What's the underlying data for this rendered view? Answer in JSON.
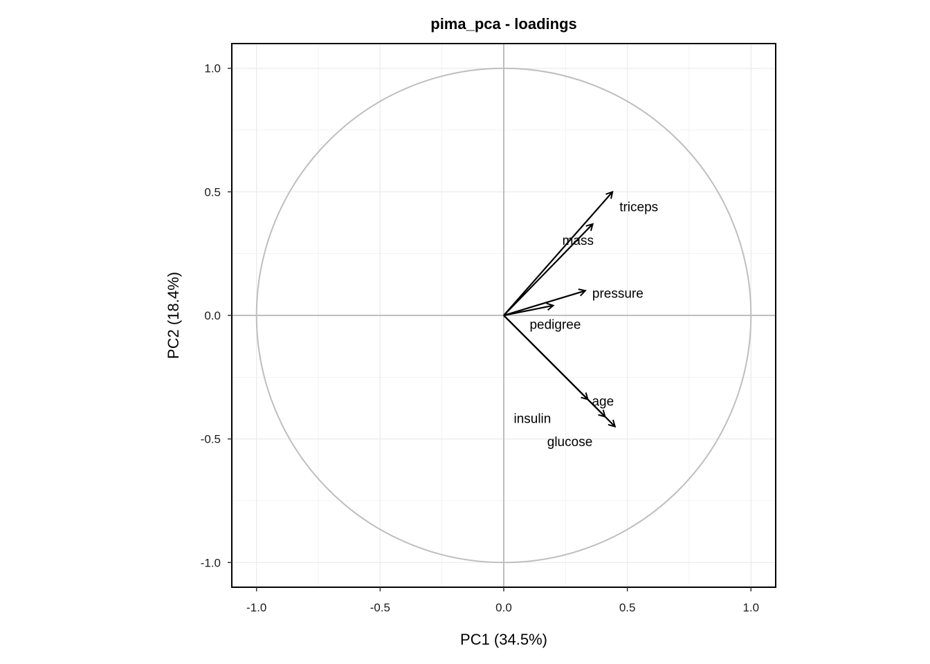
{
  "chart_data": {
    "type": "scatter",
    "subtype": "pca-loadings-arrows",
    "title": "pima_pca - loadings",
    "xlabel": "PC1 (34.5%)",
    "ylabel": "PC2 (18.4%)",
    "xlim": [
      -1.1,
      1.1
    ],
    "ylim": [
      -1.1,
      1.1
    ],
    "x_ticks": [
      -1.0,
      -0.5,
      0.0,
      0.5,
      1.0
    ],
    "x_tick_labels": [
      "-1.0",
      "-0.5",
      "0.0",
      "0.5",
      "1.0"
    ],
    "y_ticks": [
      -1.0,
      -0.5,
      0.0,
      0.5,
      1.0
    ],
    "y_tick_labels": [
      "-1.0",
      "-0.5",
      "0.0",
      "0.5",
      "1.0"
    ],
    "grid": true,
    "unit_circle": true,
    "colors": {
      "arrow": "#000000",
      "circle": "#bebebe",
      "grid": "#ebebeb",
      "zero_lines": "#bebebe"
    },
    "loadings": [
      {
        "name": "triceps",
        "x": 0.44,
        "y": 0.5
      },
      {
        "name": "mass",
        "x": 0.36,
        "y": 0.37
      },
      {
        "name": "pressure",
        "x": 0.33,
        "y": 0.1
      },
      {
        "name": "pedigree",
        "x": 0.2,
        "y": 0.04
      },
      {
        "name": "age",
        "x": 0.34,
        "y": -0.34
      },
      {
        "name": "insulin",
        "x": 0.41,
        "y": -0.41
      },
      {
        "name": "glucose",
        "x": 0.45,
        "y": -0.45
      }
    ]
  }
}
